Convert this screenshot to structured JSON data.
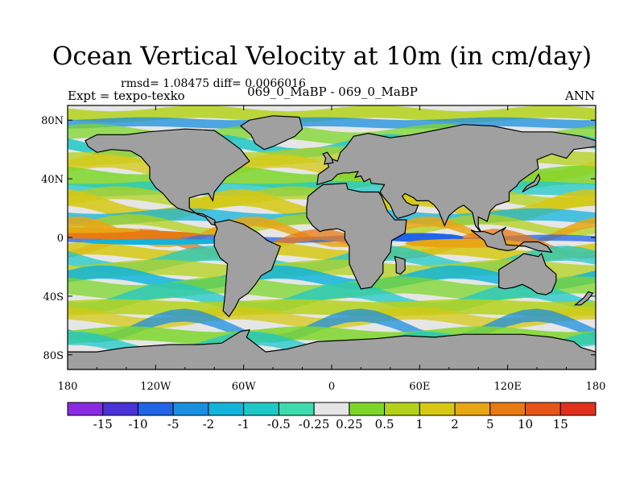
{
  "chart_data": {
    "type": "heatmap",
    "title": "Ocean Vertical Velocity at 10m (in cm/day)",
    "stats_text": "rmsd= 1.08475 diff= 0.0066016",
    "experiment_text": "Expt = texpo-texko",
    "period_text": "069_0_MaBP - 069_0_MaBP",
    "season_text": "ANN",
    "xlim": [
      -180,
      180
    ],
    "ylim": [
      -90,
      90
    ],
    "x_ticks": [
      {
        "value": -180,
        "label": "180"
      },
      {
        "value": -120,
        "label": "120W"
      },
      {
        "value": -60,
        "label": "60W"
      },
      {
        "value": 0,
        "label": "0"
      },
      {
        "value": 60,
        "label": "60E"
      },
      {
        "value": 120,
        "label": "120E"
      },
      {
        "value": 180,
        "label": "180"
      }
    ],
    "y_ticks": [
      {
        "value": 80,
        "label": "80N"
      },
      {
        "value": 40,
        "label": "40N"
      },
      {
        "value": 0,
        "label": "0"
      },
      {
        "value": -40,
        "label": "40S"
      },
      {
        "value": -80,
        "label": "80S"
      }
    ],
    "colorbar": {
      "labels": [
        "-15",
        "-10",
        "-5",
        "-2",
        "-1",
        "-0.5",
        "-0.25",
        "0.25",
        "0.5",
        "1",
        "2",
        "5",
        "10",
        "15"
      ],
      "colors": [
        "#8a2be2",
        "#4a32d8",
        "#2164e6",
        "#1a8fe0",
        "#12b4dc",
        "#1fc8c8",
        "#3cdcae",
        "#e6e6e6",
        "#7ed62a",
        "#b4d21a",
        "#d6c814",
        "#e8a614",
        "#e87a14",
        "#e65418",
        "#e0301c"
      ]
    },
    "land_color": "#a0a0a0",
    "land_outline_color": "#000000"
  }
}
